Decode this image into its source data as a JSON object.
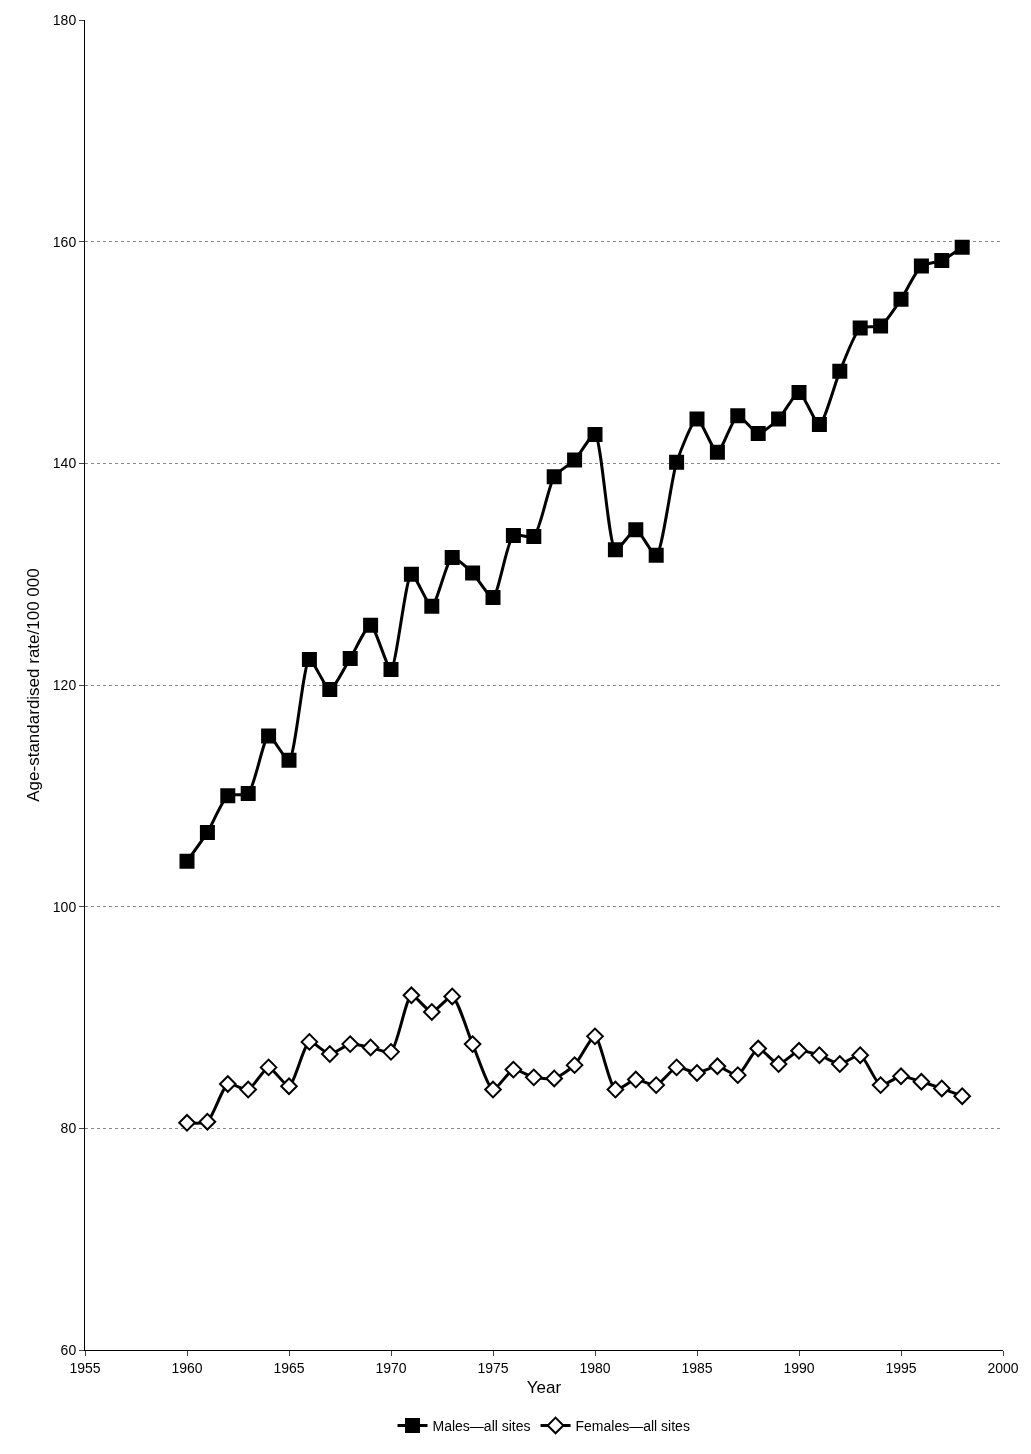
{
  "chart_data": {
    "type": "line",
    "xlabel": "Year",
    "ylabel": "Age-standardised rate/100 000",
    "x": [
      1960,
      1961,
      1962,
      1963,
      1964,
      1965,
      1966,
      1967,
      1968,
      1969,
      1970,
      1971,
      1972,
      1973,
      1974,
      1975,
      1976,
      1977,
      1978,
      1979,
      1980,
      1981,
      1982,
      1983,
      1984,
      1985,
      1986,
      1987,
      1988,
      1989,
      1990,
      1991,
      1992,
      1993,
      1994,
      1995,
      1996,
      1997,
      1998
    ],
    "series": [
      {
        "name": "Males—all sites",
        "color": "#000000",
        "marker": "square",
        "values": [
          104.1,
          106.7,
          110.0,
          110.2,
          115.4,
          113.2,
          122.3,
          119.6,
          122.4,
          125.4,
          121.4,
          130.0,
          127.1,
          131.5,
          130.1,
          127.9,
          133.5,
          133.4,
          138.8,
          140.3,
          142.6,
          132.2,
          134.0,
          131.7,
          140.1,
          144.0,
          141.0,
          144.3,
          142.7,
          144.0,
          146.4,
          143.5,
          148.3,
          152.2,
          152.4,
          154.8,
          157.8,
          158.3,
          159.5
        ]
      },
      {
        "name": "Females—all sites",
        "color": "#000000",
        "marker": "diamond",
        "values": [
          80.5,
          80.6,
          84.0,
          83.5,
          85.5,
          83.8,
          87.8,
          86.7,
          87.6,
          87.3,
          86.9,
          92.0,
          90.5,
          91.9,
          87.6,
          83.5,
          85.3,
          84.6,
          84.5,
          85.7,
          88.3,
          83.5,
          84.4,
          83.9,
          85.5,
          85.0,
          85.6,
          84.8,
          87.2,
          85.8,
          87.0,
          86.6,
          85.8,
          86.6,
          83.9,
          84.7,
          84.2,
          83.6,
          82.9
        ]
      }
    ],
    "xlim": [
      1955,
      2000
    ],
    "xticks": [
      1955,
      1960,
      1965,
      1970,
      1975,
      1980,
      1985,
      1990,
      1995,
      2000
    ],
    "ylim": [
      60,
      180
    ],
    "yticks": [
      60,
      80,
      100,
      120,
      140,
      160,
      180
    ],
    "grid": "y",
    "legend": "bottom",
    "line_style": "solid"
  }
}
